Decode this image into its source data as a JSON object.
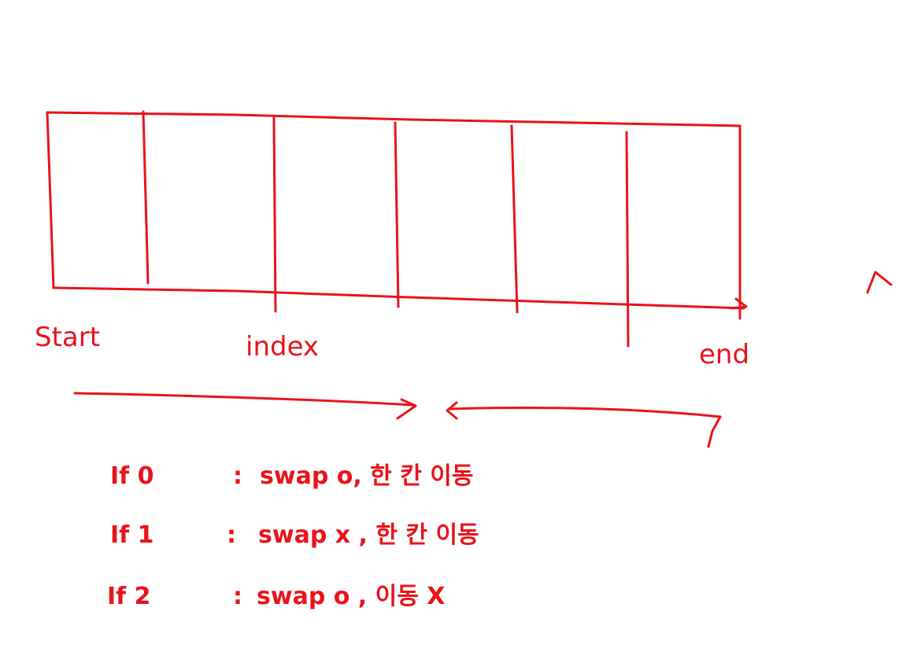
{
  "diagram": {
    "pointers": {
      "start": "Start",
      "index": "index",
      "end": "end"
    },
    "rules": [
      {
        "cond": "If 0",
        "sep": ":",
        "action": "swap o, 한 칸 이동"
      },
      {
        "cond": "If 1",
        "sep": ":",
        "action": "swap x , 한 칸 이동"
      },
      {
        "cond": "If 2",
        "sep": ":",
        "action": "swap o , 이동 X"
      }
    ],
    "cell_count": 6,
    "ink_color": "#e8141b"
  }
}
